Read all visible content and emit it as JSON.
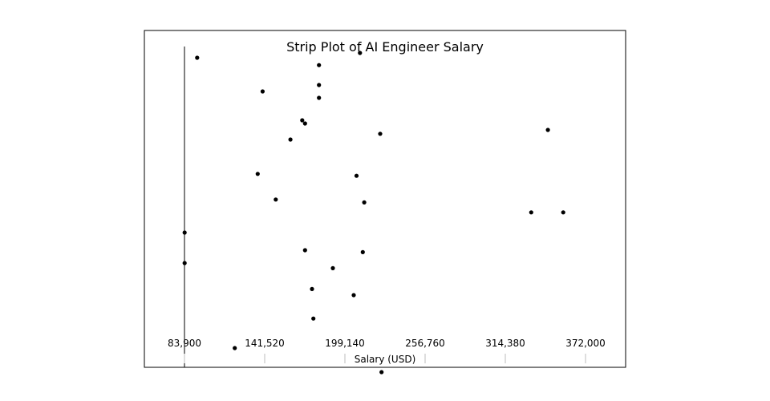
{
  "chart_data": {
    "type": "scatter",
    "title": "Strip Plot of AI Engineer Salary",
    "xlabel": "Salary (USD)",
    "ylabel": "",
    "xlim": [
      83900,
      372000
    ],
    "x_ticks": [
      83900,
      141520,
      199140,
      256760,
      314380,
      372000
    ],
    "x_tick_labels": [
      "83,900",
      "141,520",
      "199,140",
      "256,760",
      "314,380",
      "372,000"
    ],
    "grid": false,
    "legend": "none",
    "point_color": "#000000",
    "series": [
      {
        "values": [
          {
            "x": 93000,
            "y": 0.965
          },
          {
            "x": 140000,
            "y": 0.86
          },
          {
            "x": 180500,
            "y": 0.942
          },
          {
            "x": 180500,
            "y": 0.88
          },
          {
            "x": 180500,
            "y": 0.84
          },
          {
            "x": 210000,
            "y": 0.98
          },
          {
            "x": 168500,
            "y": 0.77
          },
          {
            "x": 170500,
            "y": 0.76
          },
          {
            "x": 160000,
            "y": 0.71
          },
          {
            "x": 224500,
            "y": 0.728
          },
          {
            "x": 345000,
            "y": 0.74
          },
          {
            "x": 136500,
            "y": 0.603
          },
          {
            "x": 207500,
            "y": 0.597
          },
          {
            "x": 149500,
            "y": 0.523
          },
          {
            "x": 213000,
            "y": 0.514
          },
          {
            "x": 333000,
            "y": 0.483
          },
          {
            "x": 356000,
            "y": 0.483
          },
          {
            "x": 84000,
            "y": 0.42
          },
          {
            "x": 84000,
            "y": 0.325
          },
          {
            "x": 170500,
            "y": 0.365
          },
          {
            "x": 212000,
            "y": 0.359
          },
          {
            "x": 190500,
            "y": 0.309
          },
          {
            "x": 175500,
            "y": 0.244
          },
          {
            "x": 205500,
            "y": 0.225
          },
          {
            "x": 176500,
            "y": 0.152
          },
          {
            "x": 120000,
            "y": 0.06
          },
          {
            "x": 225500,
            "y": -0.015
          }
        ]
      }
    ]
  }
}
